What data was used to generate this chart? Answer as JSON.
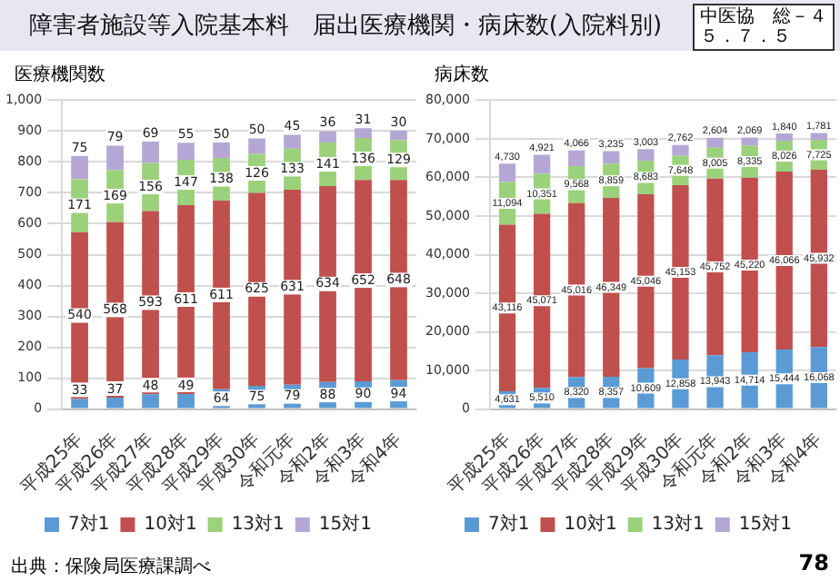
{
  "chart_data": [
    {
      "type": "bar",
      "title": "障害者施設等入院基本料　届出医療機関・病床数(入院料別)",
      "ylabel": "医療機関数",
      "categories": [
        "平成25年",
        "平成26年",
        "平成27年",
        "平成28年",
        "平成29年",
        "平成30年",
        "令和元年",
        "令和2年",
        "令和3年",
        "令和4年"
      ],
      "series": [
        {
          "name": "7対1",
          "color": "#5b9bd5",
          "values": [
            33,
            37,
            48,
            49,
            64,
            75,
            79,
            88,
            90,
            94
          ]
        },
        {
          "name": "10対1",
          "color": "#c0504d",
          "values": [
            540,
            568,
            593,
            611,
            611,
            625,
            631,
            634,
            652,
            648
          ]
        },
        {
          "name": "13対1",
          "color": "#9bd17b",
          "values": [
            171,
            169,
            156,
            147,
            138,
            126,
            133,
            141,
            136,
            129
          ]
        },
        {
          "name": "15対1",
          "color": "#b4a7d6",
          "values": [
            75,
            79,
            69,
            55,
            50,
            50,
            45,
            36,
            31,
            30
          ]
        }
      ],
      "stacked": true,
      "ylim": [
        0,
        1000
      ],
      "yticks": [
        0,
        100,
        200,
        300,
        400,
        500,
        600,
        700,
        800,
        900,
        {
          "value": 1000,
          "label": "1,000"
        }
      ],
      "grid": "y",
      "legend": "bottom",
      "data_labels": true,
      "annotations": [
        "出典：保険局医療課調べ"
      ]
    },
    {
      "type": "bar",
      "ylabel": "病床数",
      "categories": [
        "平成25年",
        "平成26年",
        "平成27年",
        "平成28年",
        "平成29年",
        "平成30年",
        "令和元年",
        "令和2年",
        "令和3年",
        "令和4年"
      ],
      "series": [
        {
          "name": "7対1",
          "color": "#5b9bd5",
          "values": [
            4631,
            5510,
            8320,
            8357,
            10609,
            12858,
            13943,
            14714,
            15444,
            16068
          ],
          "value_labels": [
            "4,631",
            "5,510",
            "8,320",
            "8,357",
            "10,609",
            "12,858",
            "13,943",
            "14,714",
            "15,444",
            "16,068"
          ]
        },
        {
          "name": "10対1",
          "color": "#c0504d",
          "values": [
            43116,
            45071,
            45016,
            46349,
            45046,
            45153,
            45752,
            45220,
            46066,
            45932
          ],
          "value_labels": [
            "43,116",
            "45,071",
            "45,016",
            "46,349",
            "45,046",
            "45,153",
            "45,752",
            "45,220",
            "46,066",
            "45,932"
          ]
        },
        {
          "name": "13対1",
          "color": "#9bd17b",
          "values": [
            11094,
            10351,
            9568,
            8859,
            8683,
            7648,
            8005,
            8335,
            8026,
            7725
          ],
          "value_labels": [
            "11,094",
            "10,351",
            "9,568",
            "8,859",
            "8,683",
            "7,648",
            "8,005",
            "8,335",
            "8,026",
            "7,725"
          ]
        },
        {
          "name": "15対1",
          "color": "#b4a7d6",
          "values": [
            4730,
            4921,
            4066,
            3235,
            3003,
            2762,
            2604,
            2069,
            1840,
            1781
          ],
          "value_labels": [
            "4,730",
            "4,921",
            "4,066",
            "3,235",
            "3,003",
            "2,762",
            "2,604",
            "2,069",
            "1,840",
            "1,781"
          ]
        }
      ],
      "stacked": true,
      "ylim": [
        0,
        80000
      ],
      "yticks": [
        0,
        {
          "value": 10000,
          "label": "10,000"
        },
        {
          "value": 20000,
          "label": "20,000"
        },
        {
          "value": 30000,
          "label": "30,000"
        },
        {
          "value": 40000,
          "label": "40,000"
        },
        {
          "value": 50000,
          "label": "50,000"
        },
        {
          "value": 60000,
          "label": "60,000"
        },
        {
          "value": 70000,
          "label": "70,000"
        },
        {
          "value": 80000,
          "label": "80,000"
        }
      ],
      "grid": "y",
      "legend": "bottom",
      "annotations": [
        "中医協　総－４",
        "５．７．５",
        "78"
      ]
    }
  ]
}
